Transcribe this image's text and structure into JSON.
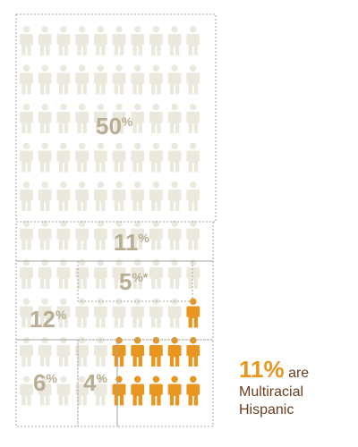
{
  "colors": {
    "light": "#ebe8dd",
    "highlight": "#e8961f",
    "label": "#b8ae94",
    "callout_text": "#6b3d1f",
    "border": "#a6a6a6"
  },
  "chart_data": {
    "type": "waffle",
    "unit": "person icon",
    "groups": [
      {
        "label": "50",
        "sign": "%",
        "value": 50
      },
      {
        "label": "11",
        "sign": "%",
        "value": 11
      },
      {
        "label": "5",
        "sign": "%*",
        "value": 5
      },
      {
        "label": "12",
        "sign": "%",
        "value": 12
      },
      {
        "label": "6",
        "sign": "%",
        "value": 6
      },
      {
        "label": "4",
        "sign": "%",
        "value": 4
      }
    ],
    "highlight": {
      "value": 11,
      "label": "11%",
      "suffix": "are",
      "line1": "Multiracial",
      "line2": "Hispanic"
    }
  }
}
